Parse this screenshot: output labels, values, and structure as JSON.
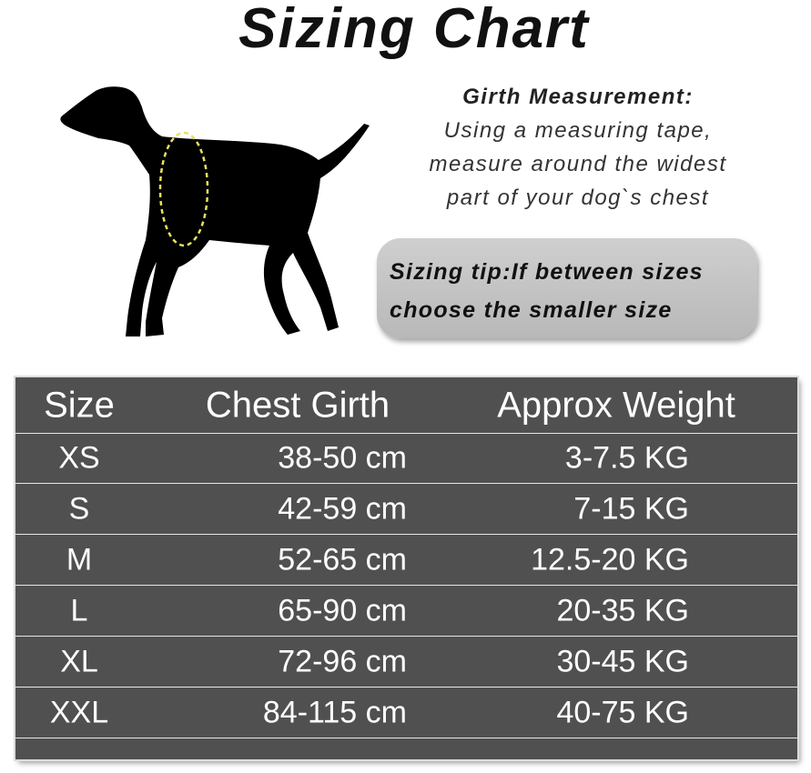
{
  "title": "Sizing Chart",
  "girth": {
    "heading": "Girth Measurement:",
    "lines": [
      "Using a measuring tape,",
      "measure around the widest",
      "part of your dog`s chest"
    ]
  },
  "tip": {
    "lines": [
      "Sizing tip:If between sizes",
      "choose the smaller size"
    ]
  },
  "table": {
    "headers": [
      "Size",
      "Chest Girth",
      "Approx Weight"
    ],
    "rows": [
      [
        "XS",
        "38-50 cm",
        "3-7.5 KG"
      ],
      [
        "S",
        "42-59 cm",
        "7-15 KG"
      ],
      [
        "M",
        "52-65 cm",
        "12.5-20 KG"
      ],
      [
        "L",
        "65-90 cm",
        "20-35 KG"
      ],
      [
        "XL",
        "72-96 cm",
        "30-45 KG"
      ],
      [
        "XXL",
        "84-115 cm",
        "40-75 KG"
      ]
    ]
  },
  "colors": {
    "table_bg": "#505050",
    "tip_bg": "#c4c4c4",
    "girth_line": "#e8e060"
  }
}
